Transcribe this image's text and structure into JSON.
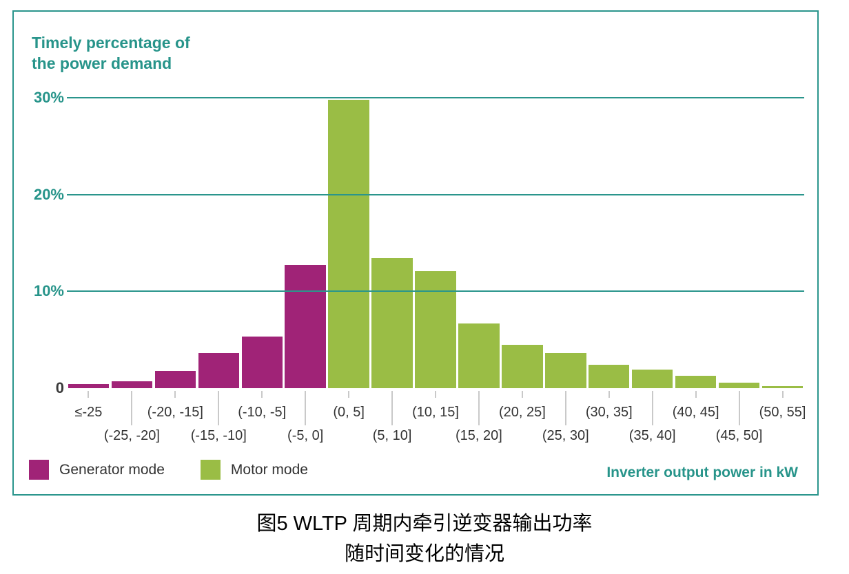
{
  "panel": {
    "title_line1": "Timely percentage of",
    "title_line2": "the power demand"
  },
  "caption": {
    "line1": "图5 WLTP 周期内牵引逆变器输出功率",
    "line2": "随时间变化的情况"
  },
  "colors": {
    "teal": "#27948a",
    "generator": "#a02377",
    "motor": "#9abd45",
    "axis_text": "#333333",
    "tick_mark": "#c9c9c9"
  },
  "chart_data": {
    "type": "bar",
    "title": "Timely percentage of the power demand",
    "title_lines": [
      "Timely percentage of",
      "the power demand"
    ],
    "xlabel": "Inverter output power in kW",
    "ylabel": "Timely percentage of the power demand (%)",
    "categories": [
      "≤-25",
      "(-25, -20]",
      "(-20, -15]",
      "(-15, -10]",
      "(-10, -5]",
      "(-5, 0]",
      "(0, 5]",
      "(5, 10]",
      "(10, 15]",
      "(15, 20]",
      "(20, 25]",
      "(25, 30]",
      "(30, 35]",
      "(35, 40]",
      "(40, 45]",
      "(45, 50]",
      "(50, 55]"
    ],
    "values": [
      0.4,
      0.7,
      1.8,
      3.6,
      5.3,
      12.7,
      29.8,
      13.4,
      12.1,
      6.7,
      4.5,
      3.6,
      2.4,
      1.9,
      1.3,
      0.6,
      0.2
    ],
    "mode_per_bar": [
      "generator",
      "generator",
      "generator",
      "generator",
      "generator",
      "generator",
      "motor",
      "motor",
      "motor",
      "motor",
      "motor",
      "motor",
      "motor",
      "motor",
      "motor",
      "motor",
      "motor"
    ],
    "legend": [
      {
        "name": "Generator mode",
        "mode": "generator",
        "color": "#a02377"
      },
      {
        "name": "Motor mode",
        "mode": "motor",
        "color": "#9abd45"
      }
    ],
    "yticks": [
      {
        "label": "30%",
        "value": 30
      },
      {
        "label": "20%",
        "value": 20
      },
      {
        "label": "10%",
        "value": 10
      },
      {
        "label": "0",
        "value": 0
      }
    ],
    "ylim": [
      0,
      32
    ],
    "grid": "horizontal teal lines at 10%, 20%, 30%",
    "legend_position": "bottom-left",
    "x_labels_staggered_two_rows": true
  }
}
